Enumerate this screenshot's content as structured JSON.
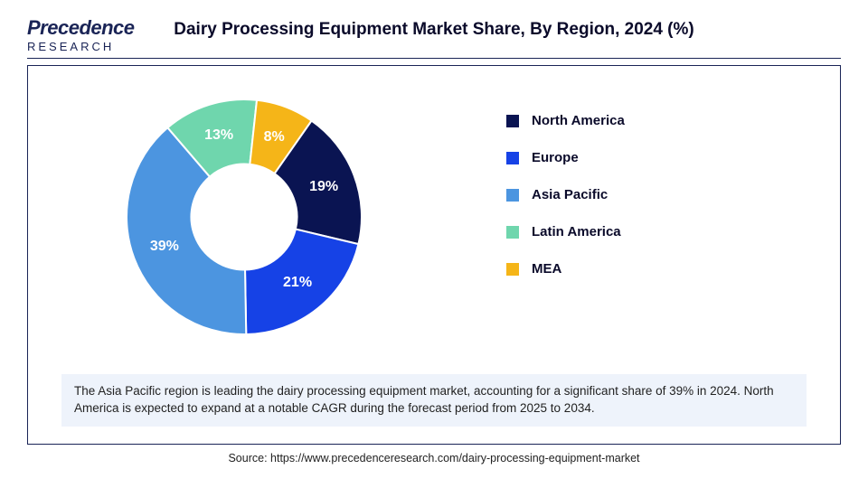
{
  "logo_text": "Precedence",
  "logo_sub": "RESEARCH",
  "title": "Dairy Processing Equipment Market Share, By Region, 2024 (%)",
  "chart": {
    "type": "donut",
    "background_color": "#ffffff",
    "inner_radius_ratio": 0.45,
    "slices": [
      {
        "label": "North America",
        "value": 19,
        "color": "#0a1452",
        "display": "19%"
      },
      {
        "label": "Europe",
        "value": 21,
        "color": "#1642e6",
        "display": "21%"
      },
      {
        "label": "Asia Pacific",
        "value": 39,
        "color": "#4c95e0",
        "display": "39%"
      },
      {
        "label": "Latin America",
        "value": 13,
        "color": "#6fd6ad",
        "display": "13%"
      },
      {
        "label": "MEA",
        "value": 8,
        "color": "#f5b518",
        "display": "8%"
      }
    ],
    "start_angle_deg": -55,
    "label_fontsize": 16,
    "label_color": "#ffffff",
    "label_fontweight": "bold"
  },
  "legend": {
    "items": [
      {
        "label": "North America",
        "color": "#0a1452"
      },
      {
        "label": "Europe",
        "color": "#1642e6"
      },
      {
        "label": "Asia Pacific",
        "color": "#4c95e0"
      },
      {
        "label": "Latin America",
        "color": "#6fd6ad"
      },
      {
        "label": "MEA",
        "color": "#f5b518"
      }
    ],
    "label_fontsize": 15,
    "label_fontweight": "bold"
  },
  "footnote": "The Asia Pacific region is leading the dairy processing equipment market, accounting for a significant share of 39% in 2024. North America is expected to expand at a notable CAGR during the forecast period from 2025 to 2034.",
  "source": "Source: https://www.precedenceresearch.com/dairy-processing-equipment-market"
}
